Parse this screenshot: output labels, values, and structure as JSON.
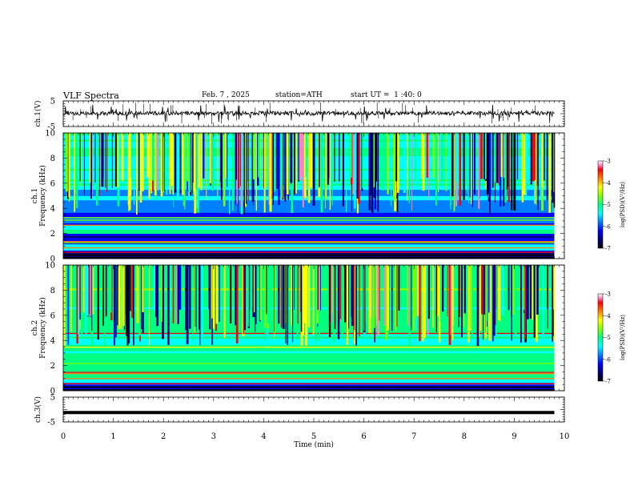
{
  "header": {
    "title": "VLF Spectra",
    "date": "Feb. 7 , 2025",
    "station": "station=ATH",
    "start": "start UT =  1 :40: 0"
  },
  "chart_data": [
    {
      "type": "line",
      "panel": "ch1-waveform",
      "ylabel": "ch.1(V)",
      "ytick_labels": [
        "5",
        "-5"
      ],
      "ylim": [
        -5,
        5
      ],
      "trace_color": "#000000"
    },
    {
      "type": "heatmap",
      "panel": "ch1-spectrogram",
      "ylabel": "ch.1\nFrequency (kHz)",
      "ytick_labels": [
        "0",
        "2",
        "4",
        "6",
        "8",
        "10"
      ],
      "ylim": [
        0,
        10
      ],
      "colorbar": {
        "label": "log(PSD)(V²/Hz)",
        "range": [
          -7,
          -3
        ],
        "tick_labels": [
          "-3",
          "-4",
          "-5",
          "-6",
          "-7"
        ]
      }
    },
    {
      "type": "heatmap",
      "panel": "ch2-spectrogram",
      "ylabel": "ch.2\nFrequency (kHz)",
      "ytick_labels": [
        "0",
        "2",
        "4",
        "6",
        "8",
        "10"
      ],
      "ylim": [
        0,
        10
      ],
      "colorbar": {
        "label": "log(PSD)(V²/Hz)",
        "range": [
          -7,
          -3
        ],
        "tick_labels": [
          "-3",
          "-4",
          "-5",
          "-6",
          "-7"
        ]
      }
    },
    {
      "type": "line",
      "panel": "ch3-waveform",
      "ylabel": "ch.3(V)",
      "ytick_labels": [
        "5",
        "-5"
      ],
      "ylim": [
        -5,
        5
      ],
      "level": -1.2,
      "trace_color": "#000000"
    }
  ],
  "xaxis": {
    "label": "Time (min)",
    "tick_labels": [
      "0",
      "1",
      "2",
      "3",
      "4",
      "5",
      "6",
      "7",
      "8",
      "9",
      "10"
    ],
    "xlim": [
      0,
      10
    ],
    "data_end": 9.8
  },
  "colors": {
    "colormap": [
      "#000000",
      "#00007f",
      "#0000ff",
      "#0080ff",
      "#00ffff",
      "#00ff80",
      "#80ff00",
      "#ffff00",
      "#ff8000",
      "#ff0000",
      "#ff80c0",
      "#ffffff"
    ]
  }
}
